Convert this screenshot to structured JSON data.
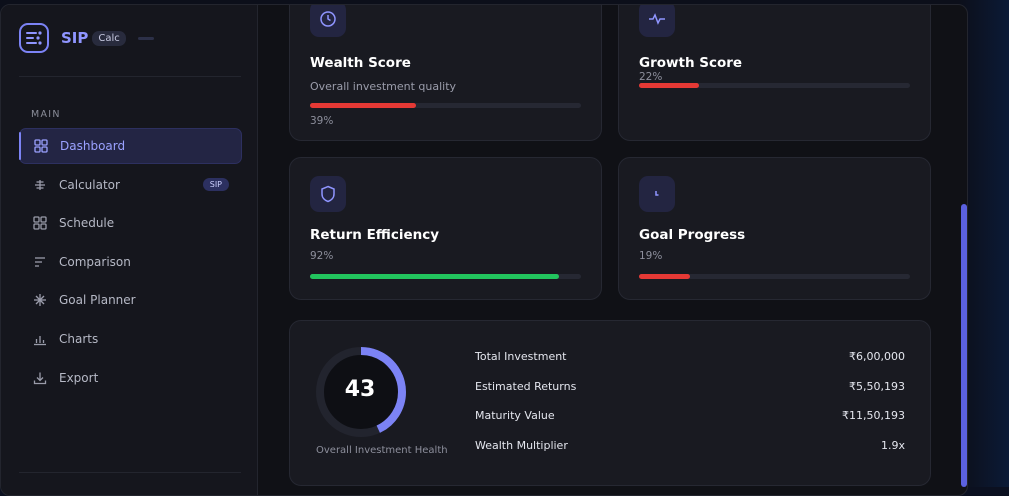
{
  "brand": {
    "name": "SIP",
    "badge": "Calc"
  },
  "sidebar": {
    "section_label": "MAIN",
    "items": [
      {
        "label": "Dashboard",
        "icon": "grid-icon",
        "active": true
      },
      {
        "label": "Calculator",
        "icon": "calculator-icon",
        "badge": "SIP"
      },
      {
        "label": "Schedule",
        "icon": "schedule-icon"
      },
      {
        "label": "Comparison",
        "icon": "comparison-icon"
      },
      {
        "label": "Goal Planner",
        "icon": "sparkle-icon"
      },
      {
        "label": "Charts",
        "icon": "bar-chart-icon"
      },
      {
        "label": "Export",
        "icon": "download-icon"
      }
    ]
  },
  "scores": {
    "wealth": {
      "title": "Wealth Score",
      "subtitle": "Overall investment quality",
      "value_label": "39%",
      "value": 0.39,
      "color": "#e53935",
      "icon": "clock-icon"
    },
    "growth": {
      "title": "Growth Score",
      "value_label": "22%",
      "value": 0.22,
      "color": "#e53935",
      "icon": "pulse-icon"
    },
    "efficiency": {
      "title": "Return Efficiency",
      "value_label": "92%",
      "value": 0.92,
      "color": "#22c55e",
      "icon": "shield-icon"
    },
    "goal": {
      "title": "Goal Progress",
      "value_label": "19%",
      "value": 0.19,
      "color": "#e53935",
      "icon": "timer-icon"
    }
  },
  "summary": {
    "health_score": "43",
    "health_value": 0.43,
    "health_caption": "Overall Investment Health",
    "rows": [
      {
        "label": "Total Investment",
        "value": "₹6,00,000"
      },
      {
        "label": "Estimated Returns",
        "value": "₹5,50,193"
      },
      {
        "label": "Maturity Value",
        "value": "₹11,50,193"
      },
      {
        "label": "Wealth Multiplier",
        "value": "1.9x"
      }
    ]
  },
  "colors": {
    "accent": "#7c83f5",
    "danger": "#e53935",
    "success": "#22c55e"
  }
}
